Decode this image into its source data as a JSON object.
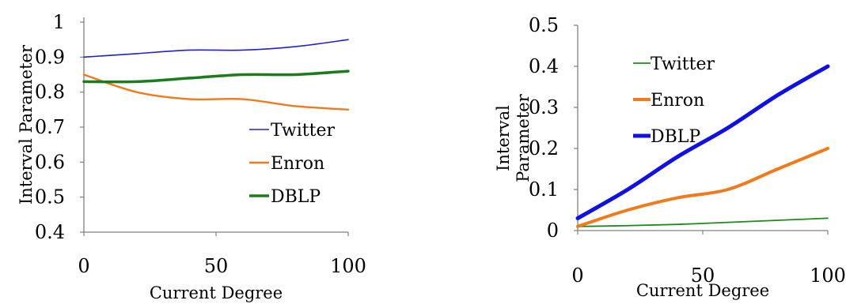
{
  "chart_data": [
    {
      "type": "line",
      "x": [
        0,
        20,
        40,
        60,
        80,
        100
      ],
      "xticks": [
        "0",
        "50",
        "100"
      ],
      "yticks": [
        "0.4",
        "0.5",
        "0.6",
        "0.7",
        "0.8",
        "0.9",
        "1"
      ],
      "xlabel": "Current Degree",
      "ylabel": "Interval Parameter",
      "xlim": [
        0,
        100
      ],
      "ylim": [
        0.4,
        1.0
      ],
      "legend_position": "lower-right",
      "series": [
        {
          "name": "Twitter",
          "color": "#1f1fd6",
          "values": [
            0.9,
            0.91,
            0.92,
            0.92,
            0.93,
            0.95
          ]
        },
        {
          "name": "Enron",
          "color": "#f07a1c",
          "values": [
            0.85,
            0.8,
            0.78,
            0.78,
            0.76,
            0.75
          ]
        },
        {
          "name": "DBLP",
          "color": "#1e7a1e",
          "values": [
            0.83,
            0.83,
            0.84,
            0.85,
            0.85,
            0.86
          ]
        }
      ]
    },
    {
      "type": "line",
      "x": [
        0,
        20,
        40,
        60,
        80,
        100
      ],
      "xticks": [
        "0",
        "50",
        "100"
      ],
      "yticks": [
        "0",
        "0.1",
        "0.2",
        "0.3",
        "0.4",
        "0.5"
      ],
      "xlabel": "Current Degree",
      "ylabel_lines": [
        "Interval",
        "Parameter"
      ],
      "xlim": [
        0,
        100
      ],
      "ylim": [
        0,
        0.5
      ],
      "legend_position": "top-left",
      "series": [
        {
          "name": "Twitter",
          "color": "#1e8a1e",
          "values": [
            0.01,
            0.012,
            0.015,
            0.02,
            0.025,
            0.03
          ]
        },
        {
          "name": "Enron",
          "color": "#f07a1c",
          "values": [
            0.01,
            0.05,
            0.08,
            0.1,
            0.15,
            0.2
          ]
        },
        {
          "name": "DBLP",
          "color": "#1010e0",
          "values": [
            0.03,
            0.1,
            0.18,
            0.25,
            0.33,
            0.4
          ]
        }
      ]
    }
  ]
}
